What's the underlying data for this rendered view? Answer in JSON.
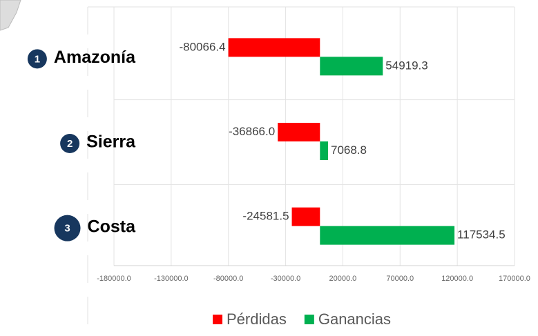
{
  "chart_data": {
    "type": "hbar",
    "categories": [
      "Amazonía",
      "Sierra",
      "Costa"
    ],
    "category_numbers": [
      "1",
      "2",
      "3"
    ],
    "series": [
      {
        "name": "Pérdidas",
        "color": "#ff0000",
        "values": [
          -80066.4,
          -36866.0,
          -24581.5
        ],
        "value_labels": [
          "-80066.4",
          "-36866.0",
          "-24581.5"
        ]
      },
      {
        "name": "Ganancias",
        "color": "#00b050",
        "values": [
          54919.3,
          7068.8,
          117534.5
        ],
        "value_labels": [
          "54919.3",
          "7068.8",
          "117534.5"
        ]
      }
    ],
    "xlim": [
      -180000,
      170000
    ],
    "xticks": [
      {
        "value": -180000,
        "label": "-180000.0"
      },
      {
        "value": -130000,
        "label": "-130000.0"
      },
      {
        "value": -80000,
        "label": "-80000.0"
      },
      {
        "value": -30000,
        "label": "-30000.0"
      },
      {
        "value": 20000,
        "label": "20000.0"
      },
      {
        "value": 70000,
        "label": "70000.0"
      },
      {
        "value": 120000,
        "label": "120000.0"
      },
      {
        "value": 170000,
        "label": "170000.0"
      }
    ],
    "grid": true,
    "legend": "bottom"
  }
}
